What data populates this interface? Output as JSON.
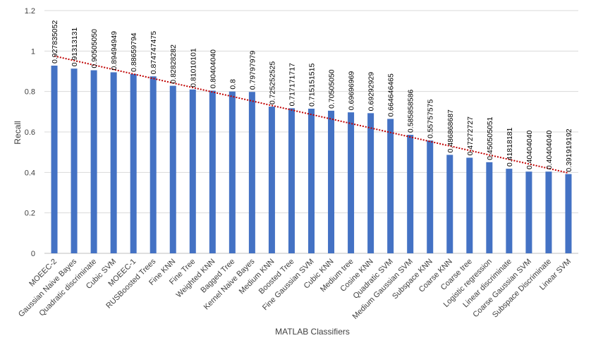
{
  "chart_data": {
    "type": "bar",
    "xlabel": "MATLAB  Classifiers",
    "ylabel": "Recall",
    "ylim": [
      0,
      1.2
    ],
    "yticks": [
      "0",
      "0.2",
      "0.4",
      "0.6",
      "0.8",
      "1",
      "1.2"
    ],
    "grid": true,
    "trendline": "linear",
    "categories": [
      "MOEEC-2",
      "Gaussian Naive Bayes",
      "Quadratic discriminate",
      "Cubic SVM",
      "MOEEC-1",
      "RUSBoosted Trees",
      "Fine KNN",
      "Fine Tree",
      "Weighted KNN",
      "Bagged Tree",
      "Kernel Naive Bayes",
      "Medium KNN",
      "Boosted Tree",
      "Fine Gaussian SVM",
      "Cubic KNN",
      "Medium tree",
      "Cosine KNN",
      "Quadratic SVM",
      "Medium Gaussian SVM",
      "Subspace KNN",
      "Coarse KNN",
      "Coarse tree",
      "Logistic regression",
      "Linear discriminate",
      "Coarse Gaussian SVM",
      "Subspace Discriminate",
      "Linear SVM"
    ],
    "values": [
      0.927835052,
      0.91313131,
      0.9050505,
      0.89494949,
      0.88659794,
      0.874747475,
      0.82828282,
      0.81010101,
      0.8040404,
      0.8,
      0.79797979,
      0.725252525,
      0.717171717,
      0.715151515,
      0.7050505,
      0.69696969,
      0.69292929,
      0.664646465,
      0.585858586,
      0.55757575,
      0.486868687,
      0.47272727,
      0.450505051,
      0.41818181,
      0.4040404,
      0.4040404,
      0.391919192
    ],
    "value_labels": [
      "0.927835052",
      "0.91313131",
      "0.90505050",
      "0.89494949",
      "0.88659794",
      "0.874747475",
      "0.82828282",
      "0.81010101",
      "0.80404040",
      "0.8",
      "0.79797979",
      "0.725252525",
      "0.717171717",
      "0.715151515",
      "0.70505050",
      "0.69696969",
      "0.69292929",
      "0.664646465",
      "0.585858586",
      "0.55757575",
      "0.486868687",
      "0.47272727",
      "0.450505051",
      "0.41818181",
      "0.40404040",
      "0.40404040",
      "0.391919192"
    ],
    "colors": {
      "bar": "#4472C4",
      "trend": "#C00000",
      "grid": "#D9D9D9",
      "axis": "#BFBFBF"
    }
  }
}
